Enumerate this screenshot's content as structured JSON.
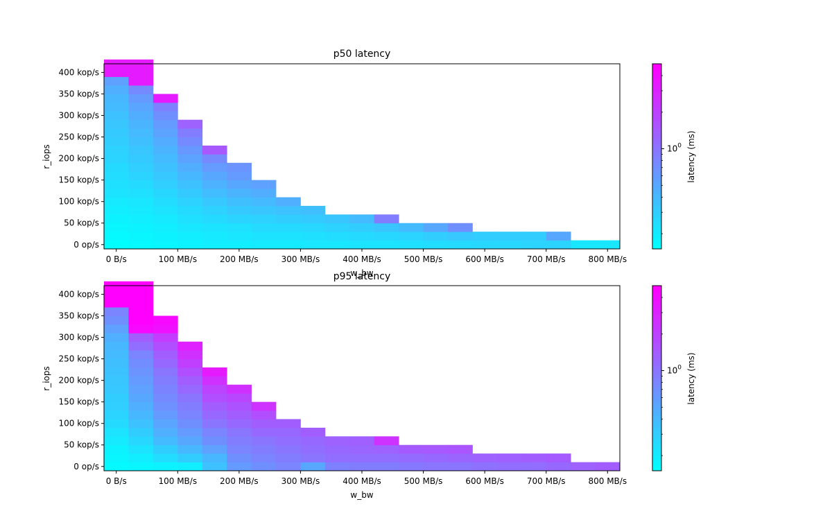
{
  "chart_data": [
    {
      "type": "heatmap",
      "title": "p50 latency",
      "xlabel": "w_bw",
      "ylabel": "r_iops",
      "x_tick_labels": [
        "0 B/s",
        "100 MB/s",
        "200 MB/s",
        "300 MB/s",
        "400 MB/s",
        "500 MB/s",
        "600 MB/s",
        "700 MB/s",
        "800 MB/s"
      ],
      "y_tick_labels": [
        "0 op/s",
        "50 kop/s",
        "100 kop/s",
        "150 kop/s",
        "200 kop/s",
        "250 kop/s",
        "300 kop/s",
        "350 kop/s",
        "400 kop/s"
      ],
      "colorbar": {
        "label": "latency (ms)",
        "scale": "log",
        "tick_label": "10^0",
        "cmap": "cool",
        "colors": [
          "#00ffff",
          "#ff00ff"
        ]
      },
      "w_bw_mb_s": [
        0,
        40,
        80,
        120,
        160,
        200,
        240,
        280,
        320,
        360,
        400,
        440,
        480,
        520,
        560,
        600,
        640,
        680,
        720,
        760,
        800
      ],
      "r_iops_kop_s": [
        0,
        20,
        40,
        60,
        80,
        100,
        120,
        140,
        160,
        180,
        200,
        220,
        240,
        260,
        280,
        300,
        320,
        340,
        360,
        380,
        400,
        420
      ],
      "column_max_r_iops_kop_s": [
        420,
        420,
        360,
        300,
        240,
        200,
        160,
        110,
        90,
        70,
        70,
        70,
        50,
        50,
        50,
        30,
        30,
        30,
        30,
        10,
        10
      ],
      "latency_ms": [
        [
          0.15,
          0.16,
          0.17,
          0.18,
          0.19,
          0.2,
          0.22,
          0.23,
          0.24,
          0.25,
          0.27,
          0.28,
          0.3,
          0.31,
          0.33,
          0.35,
          0.38,
          0.4,
          0.45,
          0.55,
          3.5,
          3.5
        ],
        [
          0.16,
          0.17,
          0.18,
          0.19,
          0.2,
          0.21,
          0.23,
          0.25,
          0.27,
          0.29,
          0.31,
          0.33,
          0.36,
          0.39,
          0.42,
          0.46,
          0.52,
          0.6,
          0.75,
          3.5,
          3.5,
          3.5
        ],
        [
          0.17,
          0.18,
          0.19,
          0.2,
          0.22,
          0.24,
          0.26,
          0.29,
          0.32,
          0.35,
          0.38,
          0.42,
          0.47,
          0.53,
          0.6,
          0.7,
          0.85,
          3.5
        ],
        [
          0.18,
          0.19,
          0.21,
          0.23,
          0.25,
          0.28,
          0.31,
          0.35,
          0.4,
          0.46,
          0.53,
          0.62,
          0.75,
          0.9,
          1.3
        ],
        [
          0.19,
          0.2,
          0.22,
          0.25,
          0.28,
          0.32,
          0.37,
          0.43,
          0.5,
          0.6,
          0.75,
          1.5
        ],
        [
          0.19,
          0.21,
          0.23,
          0.27,
          0.31,
          0.36,
          0.42,
          0.5,
          0.6,
          0.65
        ],
        [
          0.2,
          0.22,
          0.25,
          0.28,
          0.33,
          0.39,
          0.46,
          0.55
        ],
        [
          0.2,
          0.22,
          0.25,
          0.3,
          0.35,
          0.45
        ],
        [
          0.21,
          0.23,
          0.26,
          0.31,
          0.36
        ],
        [
          0.21,
          0.24,
          0.28,
          0.33
        ],
        [
          0.22,
          0.25,
          0.3,
          0.38
        ],
        [
          0.22,
          0.26,
          0.33,
          0.9
        ],
        [
          0.23,
          0.27,
          0.38
        ],
        [
          0.24,
          0.3,
          0.5
        ],
        [
          0.25,
          0.32,
          0.7
        ],
        [
          0.26,
          0.3
        ],
        [
          0.26,
          0.3
        ],
        [
          0.27,
          0.3
        ],
        [
          0.27,
          0.5
        ],
        [
          0.21
        ],
        [
          0.21
        ]
      ]
    },
    {
      "type": "heatmap",
      "title": "p95 latency",
      "xlabel": "w_bw",
      "ylabel": "r_iops",
      "x_tick_labels": [
        "0 B/s",
        "100 MB/s",
        "200 MB/s",
        "300 MB/s",
        "400 MB/s",
        "500 MB/s",
        "600 MB/s",
        "700 MB/s",
        "800 MB/s"
      ],
      "y_tick_labels": [
        "0 op/s",
        "50 kop/s",
        "100 kop/s",
        "150 kop/s",
        "200 kop/s",
        "250 kop/s",
        "300 kop/s",
        "350 kop/s",
        "400 kop/s"
      ],
      "colorbar": {
        "label": "latency (ms)",
        "scale": "log",
        "tick_label": "10^0",
        "cmap": "cool",
        "colors": [
          "#00ffff",
          "#ff00ff"
        ]
      },
      "w_bw_mb_s": [
        0,
        40,
        80,
        120,
        160,
        200,
        240,
        280,
        320,
        360,
        400,
        440,
        480,
        520,
        560,
        600,
        640,
        680,
        720,
        760,
        800
      ],
      "r_iops_kop_s": [
        0,
        20,
        40,
        60,
        80,
        100,
        120,
        140,
        160,
        180,
        200,
        220,
        240,
        260,
        280,
        300,
        320,
        340,
        360,
        380,
        400,
        420
      ],
      "column_max_r_iops_kop_s": [
        420,
        420,
        360,
        300,
        240,
        200,
        160,
        110,
        90,
        70,
        70,
        70,
        50,
        50,
        50,
        30,
        30,
        30,
        30,
        10,
        10
      ],
      "latency_ms": [
        [
          0.16,
          0.17,
          0.18,
          0.2,
          0.22,
          0.25,
          0.27,
          0.29,
          0.3,
          0.32,
          0.33,
          0.34,
          0.36,
          0.38,
          0.4,
          0.45,
          0.55,
          0.7,
          0.8,
          5.0,
          5.0,
          5.0
        ],
        [
          0.17,
          0.19,
          0.22,
          0.26,
          0.3,
          0.35,
          0.4,
          0.45,
          0.5,
          0.55,
          0.6,
          0.65,
          0.72,
          0.8,
          1.1,
          1.4,
          4.5,
          5.0,
          5.0,
          5.0,
          5.0,
          5.0
        ],
        [
          0.18,
          0.24,
          0.3,
          0.38,
          0.45,
          0.52,
          0.6,
          0.68,
          0.75,
          0.82,
          0.9,
          1.0,
          1.2,
          1.4,
          1.7,
          2.2,
          4.0,
          4.5
        ],
        [
          0.19,
          0.3,
          0.4,
          0.5,
          0.6,
          0.7,
          0.8,
          0.9,
          1.0,
          1.2,
          1.4,
          1.7,
          2.1,
          2.6,
          3.2
        ],
        [
          0.35,
          0.4,
          0.55,
          0.7,
          0.8,
          1.0,
          1.2,
          1.4,
          1.7,
          2.0,
          2.6,
          3.5
        ],
        [
          0.6,
          0.7,
          0.8,
          0.9,
          1.0,
          1.2,
          1.4,
          1.6,
          1.9,
          2.6
        ],
        [
          0.7,
          0.8,
          0.9,
          1.0,
          1.2,
          1.4,
          1.7,
          2.5
        ],
        [
          0.8,
          0.9,
          1.0,
          1.1,
          1.2,
          1.4
        ],
        [
          0.5,
          1.0,
          1.1,
          1.2,
          1.4
        ],
        [
          0.85,
          1.1,
          1.2,
          1.3
        ],
        [
          0.9,
          1.1,
          1.25,
          1.35
        ],
        [
          0.9,
          1.1,
          1.3,
          2.5
        ],
        [
          0.95,
          1.15,
          1.45
        ],
        [
          1.0,
          1.2,
          1.5
        ],
        [
          1.0,
          1.25,
          1.55
        ],
        [
          1.05,
          1.3
        ],
        [
          1.1,
          1.35
        ],
        [
          1.1,
          1.4
        ],
        [
          1.2,
          1.45
        ],
        [
          1.3
        ],
        [
          1.4
        ]
      ]
    }
  ]
}
